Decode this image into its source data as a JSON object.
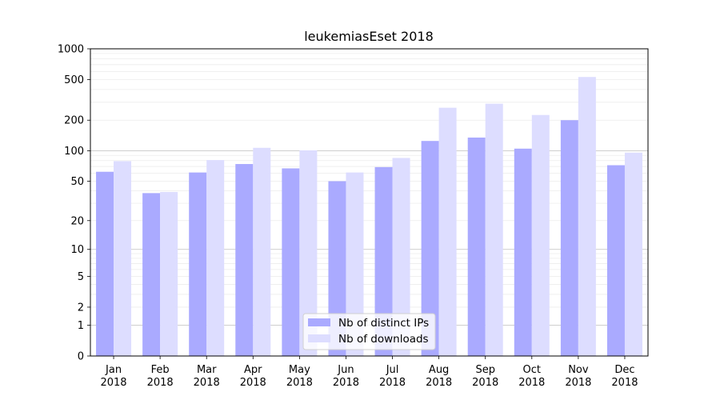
{
  "chart_data": {
    "type": "bar",
    "title": "leukemiasEset 2018",
    "xlabel": "",
    "ylabel": "",
    "yscale": "symlog",
    "ylim": [
      0,
      1000
    ],
    "yticks": [
      "0",
      "1",
      "2",
      "5",
      "10",
      "20",
      "50",
      "100",
      "200",
      "500",
      "1000"
    ],
    "grid": true,
    "legend_position": "bottom-center",
    "categories": [
      [
        "Jan",
        "2018"
      ],
      [
        "Feb",
        "2018"
      ],
      [
        "Mar",
        "2018"
      ],
      [
        "Apr",
        "2018"
      ],
      [
        "May",
        "2018"
      ],
      [
        "Jun",
        "2018"
      ],
      [
        "Jul",
        "2018"
      ],
      [
        "Aug",
        "2018"
      ],
      [
        "Sep",
        "2018"
      ],
      [
        "Oct",
        "2018"
      ],
      [
        "Nov",
        "2018"
      ],
      [
        "Dec",
        "2018"
      ]
    ],
    "series": [
      {
        "name": "Nb of distinct IPs",
        "color": "#aaaaff",
        "values": [
          62,
          38,
          61,
          74,
          67,
          50,
          69,
          125,
          135,
          105,
          200,
          72
        ]
      },
      {
        "name": "Nb of downloads",
        "color": "#ddddff",
        "values": [
          79,
          39,
          81,
          107,
          101,
          61,
          85,
          265,
          290,
          225,
          530,
          96
        ]
      }
    ]
  }
}
